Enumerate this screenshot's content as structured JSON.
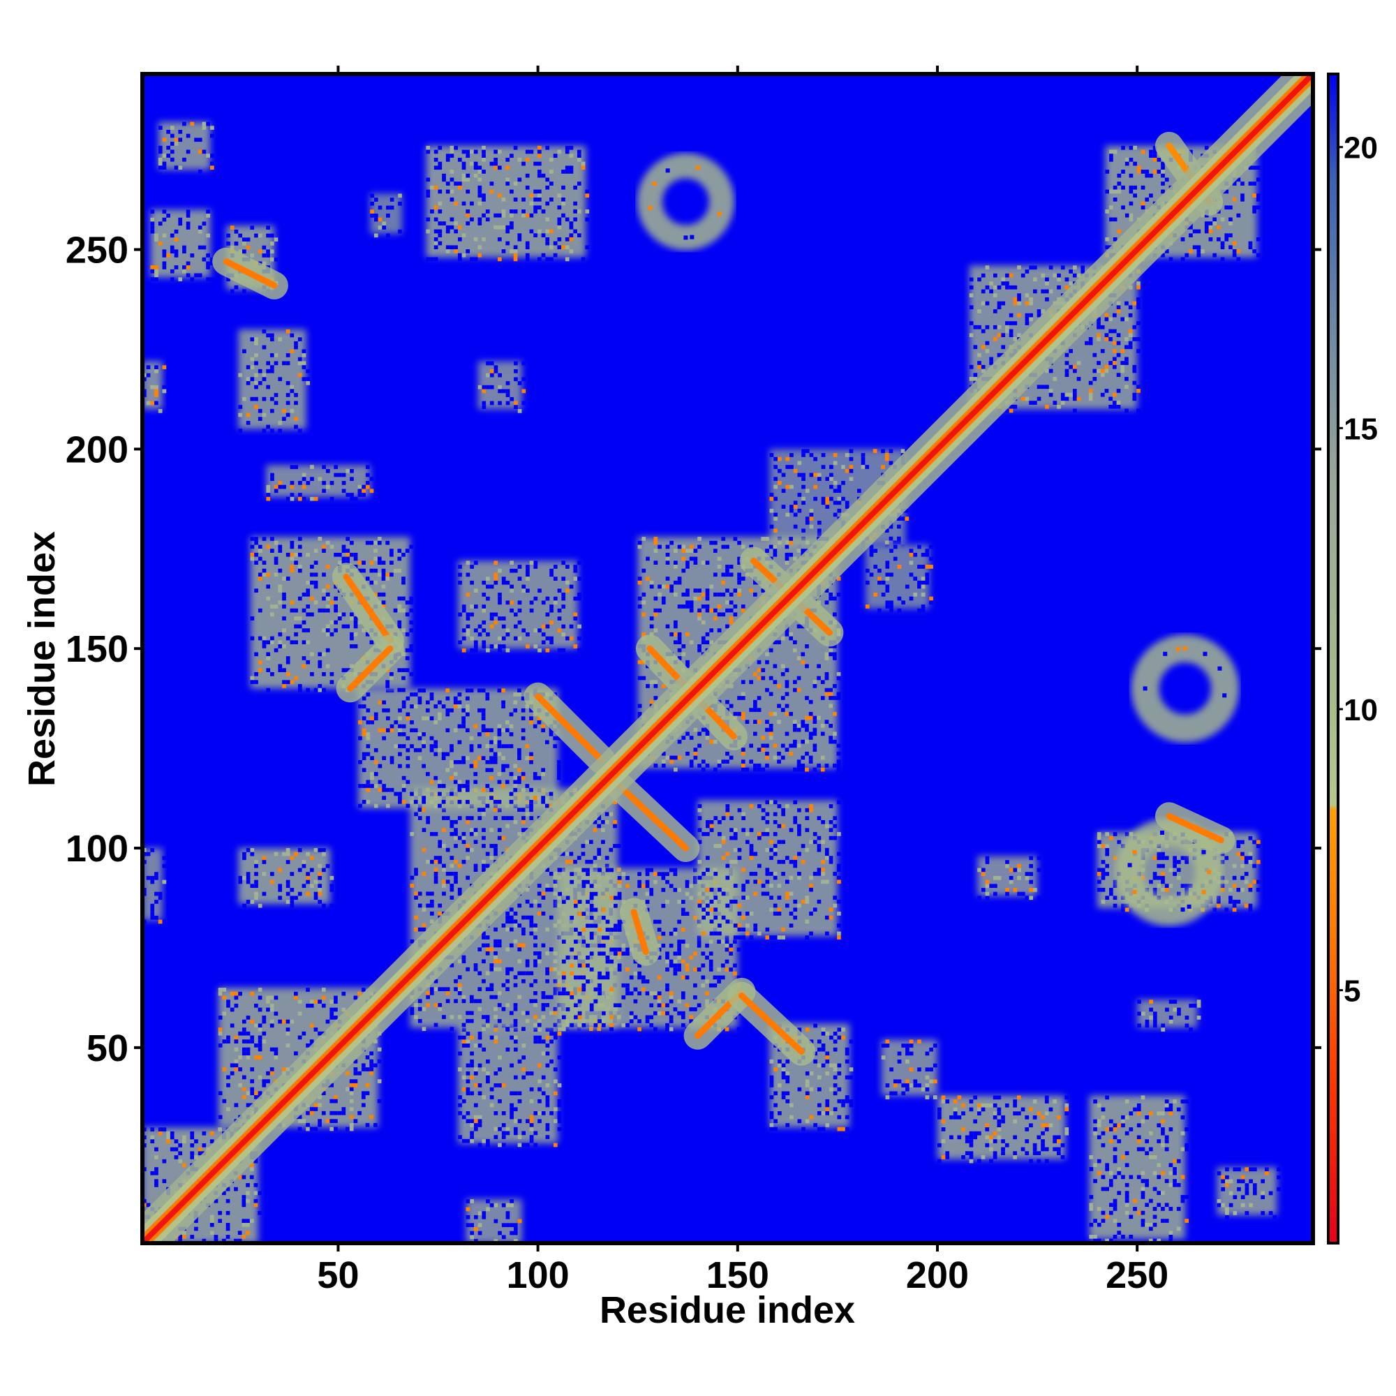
{
  "chart_data": {
    "type": "heatmap",
    "title": "",
    "xlabel": "Residue index",
    "ylabel": "Residue index",
    "xlim": [
      1,
      294
    ],
    "ylim": [
      1,
      294
    ],
    "x_ticks": [
      {
        "value": 50,
        "label": "50"
      },
      {
        "value": 100,
        "label": "100"
      },
      {
        "value": 150,
        "label": "150"
      },
      {
        "value": 200,
        "label": "200"
      },
      {
        "value": 250,
        "label": "250"
      }
    ],
    "y_ticks": [
      {
        "value": 50,
        "label": "50"
      },
      {
        "value": 100,
        "label": "100"
      },
      {
        "value": 150,
        "label": "150"
      },
      {
        "value": 200,
        "label": "200"
      },
      {
        "value": 250,
        "label": "250"
      }
    ],
    "colorbar": {
      "range": [
        0.5,
        21.3
      ],
      "ticks": [
        {
          "value": 5,
          "label": "5"
        },
        {
          "value": 10,
          "label": "10"
        },
        {
          "value": 15,
          "label": "15"
        },
        {
          "value": 20,
          "label": "20"
        }
      ],
      "stops": [
        {
          "value": 0.5,
          "color": "#e8001a"
        },
        {
          "value": 3.5,
          "color": "#ff3b00"
        },
        {
          "value": 6.0,
          "color": "#ff7a00"
        },
        {
          "value": 8.2,
          "color": "#ffa000"
        },
        {
          "value": 8.3,
          "color": "#b8c88c"
        },
        {
          "value": 10.0,
          "color": "#a9bc8c"
        },
        {
          "value": 14.0,
          "color": "#9aa898"
        },
        {
          "value": 17.0,
          "color": "#6a86a6"
        },
        {
          "value": 19.5,
          "color": "#3a5fb8"
        },
        {
          "value": 21.3,
          "color": "#0000f5"
        }
      ]
    },
    "background_value": 21,
    "background_color": "#0000f5",
    "diagonal": true,
    "contact_features": [
      {
        "kind": "block",
        "x": [
          3,
          18
        ],
        "y": [
          243,
          260
        ],
        "level": 10
      },
      {
        "kind": "block",
        "x": [
          22,
          34
        ],
        "y": [
          240,
          256
        ],
        "level": 10
      },
      {
        "kind": "block",
        "x": [
          25,
          42
        ],
        "y": [
          205,
          230
        ],
        "level": 11
      },
      {
        "kind": "block",
        "x": [
          1,
          6
        ],
        "y": [
          210,
          222
        ],
        "level": 12
      },
      {
        "kind": "block",
        "x": [
          5,
          18
        ],
        "y": [
          270,
          282
        ],
        "level": 12
      },
      {
        "kind": "block",
        "x": [
          72,
          112
        ],
        "y": [
          248,
          276
        ],
        "level": 10
      },
      {
        "kind": "ring",
        "cx": 137,
        "cy": 262,
        "r": 9,
        "level": 11
      },
      {
        "kind": "block",
        "x": [
          58,
          66
        ],
        "y": [
          254,
          264
        ],
        "level": 15
      },
      {
        "kind": "block",
        "x": [
          85,
          96
        ],
        "y": [
          210,
          222
        ],
        "level": 14
      },
      {
        "kind": "block",
        "x": [
          32,
          58
        ],
        "y": [
          188,
          196
        ],
        "level": 13
      },
      {
        "kind": "block",
        "x": [
          158,
          192
        ],
        "y": [
          176,
          200
        ],
        "level": 15
      },
      {
        "kind": "block",
        "x": [
          182,
          198
        ],
        "y": [
          160,
          176
        ],
        "level": 15
      },
      {
        "kind": "block",
        "x": [
          208,
          250
        ],
        "y": [
          210,
          246
        ],
        "level": 11
      },
      {
        "kind": "block",
        "x": [
          242,
          280
        ],
        "y": [
          248,
          276
        ],
        "level": 10
      },
      {
        "kind": "ring",
        "cx": 262,
        "cy": 140,
        "r": 10,
        "level": 11
      },
      {
        "kind": "block",
        "x": [
          240,
          280
        ],
        "y": [
          85,
          104
        ],
        "level": 10
      },
      {
        "kind": "ring",
        "cx": 258,
        "cy": 94,
        "r": 10,
        "level": 10
      },
      {
        "kind": "block",
        "x": [
          210,
          225
        ],
        "y": [
          88,
          98
        ],
        "level": 13
      },
      {
        "kind": "block",
        "x": [
          250,
          265
        ],
        "y": [
          55,
          62
        ],
        "level": 14
      },
      {
        "kind": "block",
        "x": [
          200,
          232
        ],
        "y": [
          22,
          38
        ],
        "level": 10
      },
      {
        "kind": "block",
        "x": [
          238,
          262
        ],
        "y": [
          2,
          38
        ],
        "level": 10
      },
      {
        "kind": "block",
        "x": [
          270,
          285
        ],
        "y": [
          8,
          20
        ],
        "level": 12
      },
      {
        "kind": "block",
        "x": [
          186,
          200
        ],
        "y": [
          38,
          52
        ],
        "level": 13
      },
      {
        "kind": "block",
        "x": [
          1,
          30
        ],
        "y": [
          1,
          30
        ],
        "level": 10
      },
      {
        "kind": "block",
        "x": [
          20,
          60
        ],
        "y": [
          30,
          65
        ],
        "level": 10
      },
      {
        "kind": "block",
        "x": [
          80,
          105
        ],
        "y": [
          26,
          56
        ],
        "level": 11
      },
      {
        "kind": "block",
        "x": [
          158,
          178
        ],
        "y": [
          30,
          56
        ],
        "level": 11
      },
      {
        "kind": "block",
        "x": [
          25,
          48
        ],
        "y": [
          86,
          100
        ],
        "level": 10
      },
      {
        "kind": "block",
        "x": [
          68,
          120
        ],
        "y": [
          55,
          115
        ],
        "level": 11
      },
      {
        "kind": "block",
        "x": [
          105,
          150
        ],
        "y": [
          55,
          95
        ],
        "level": 11
      },
      {
        "kind": "block",
        "x": [
          140,
          175
        ],
        "y": [
          78,
          112
        ],
        "level": 11
      },
      {
        "kind": "block",
        "x": [
          55,
          105
        ],
        "y": [
          110,
          140
        ],
        "level": 11
      },
      {
        "kind": "block",
        "x": [
          28,
          68
        ],
        "y": [
          140,
          178
        ],
        "level": 10
      },
      {
        "kind": "block",
        "x": [
          80,
          110
        ],
        "y": [
          150,
          172
        ],
        "level": 12
      },
      {
        "kind": "block",
        "x": [
          125,
          175
        ],
        "y": [
          120,
          178
        ],
        "level": 11
      },
      {
        "kind": "block",
        "x": [
          82,
          96
        ],
        "y": [
          1,
          12
        ],
        "level": 13
      },
      {
        "kind": "block",
        "x": [
          1,
          6
        ],
        "y": [
          82,
          100
        ],
        "level": 14
      },
      {
        "kind": "line",
        "from": [
          52,
          168
        ],
        "to": [
          63,
          152
        ],
        "level": 6
      },
      {
        "kind": "line",
        "from": [
          63,
          150
        ],
        "to": [
          53,
          140
        ],
        "level": 6
      },
      {
        "kind": "line",
        "from": [
          100,
          138
        ],
        "to": [
          116,
          122
        ],
        "level": 6
      },
      {
        "kind": "line",
        "from": [
          128,
          150
        ],
        "to": [
          149,
          128
        ],
        "level": 6
      },
      {
        "kind": "line",
        "from": [
          154,
          172
        ],
        "to": [
          173,
          154
        ],
        "level": 6
      },
      {
        "kind": "line",
        "from": [
          120,
          116
        ],
        "to": [
          137,
          100
        ],
        "level": 6
      },
      {
        "kind": "line",
        "from": [
          140,
          53
        ],
        "to": [
          151,
          64
        ],
        "level": 6
      },
      {
        "kind": "line",
        "from": [
          151,
          63
        ],
        "to": [
          166,
          49
        ],
        "level": 6
      },
      {
        "kind": "line",
        "from": [
          124,
          84
        ],
        "to": [
          127,
          74
        ],
        "level": 6
      },
      {
        "kind": "line",
        "from": [
          258,
          108
        ],
        "to": [
          271,
          102
        ],
        "level": 6
      },
      {
        "kind": "line",
        "from": [
          258,
          276
        ],
        "to": [
          268,
          262
        ],
        "level": 7
      },
      {
        "kind": "line",
        "from": [
          22,
          247
        ],
        "to": [
          34,
          241
        ],
        "level": 6
      }
    ]
  }
}
